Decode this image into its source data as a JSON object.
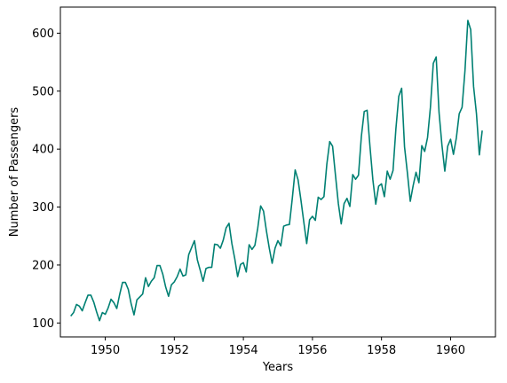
{
  "chart_data": {
    "type": "line",
    "title": "",
    "xlabel": "Years",
    "ylabel": "Number of Passengers",
    "xlim": [
      1948.7,
      1961.3
    ],
    "ylim": [
      76,
      645
    ],
    "xticks": [
      1950,
      1952,
      1954,
      1956,
      1958,
      1960
    ],
    "yticks": [
      100,
      200,
      300,
      400,
      500,
      600
    ],
    "grid": false,
    "legend": "none",
    "line_color": "#008073",
    "x_start": 1949.0,
    "x_step": 0.0833333,
    "series": [
      {
        "values": [
          112,
          118,
          132,
          129,
          121,
          135,
          148,
          148,
          136,
          119,
          104,
          118,
          115,
          126,
          141,
          135,
          125,
          149,
          170,
          170,
          158,
          133,
          114,
          140,
          145,
          150,
          178,
          163,
          172,
          178,
          199,
          199,
          184,
          162,
          146,
          166,
          171,
          180,
          193,
          181,
          183,
          218,
          230,
          242,
          209,
          191,
          172,
          194,
          196,
          196,
          236,
          235,
          229,
          243,
          264,
          272,
          237,
          211,
          180,
          201,
          204,
          188,
          235,
          227,
          234,
          264,
          302,
          293,
          259,
          229,
          203,
          229,
          242,
          233,
          267,
          269,
          270,
          315,
          364,
          347,
          312,
          274,
          237,
          278,
          284,
          277,
          317,
          313,
          318,
          374,
          413,
          405,
          355,
          306,
          271,
          306,
          315,
          301,
          356,
          348,
          355,
          422,
          465,
          467,
          404,
          347,
          305,
          336,
          340,
          318,
          362,
          348,
          363,
          435,
          491,
          505,
          404,
          359,
          310,
          337,
          360,
          342,
          406,
          396,
          420,
          472,
          548,
          559,
          463,
          407,
          362,
          405,
          417,
          391,
          419,
          461,
          472,
          535,
          622,
          606,
          508,
          461,
          390,
          432
        ]
      }
    ]
  }
}
